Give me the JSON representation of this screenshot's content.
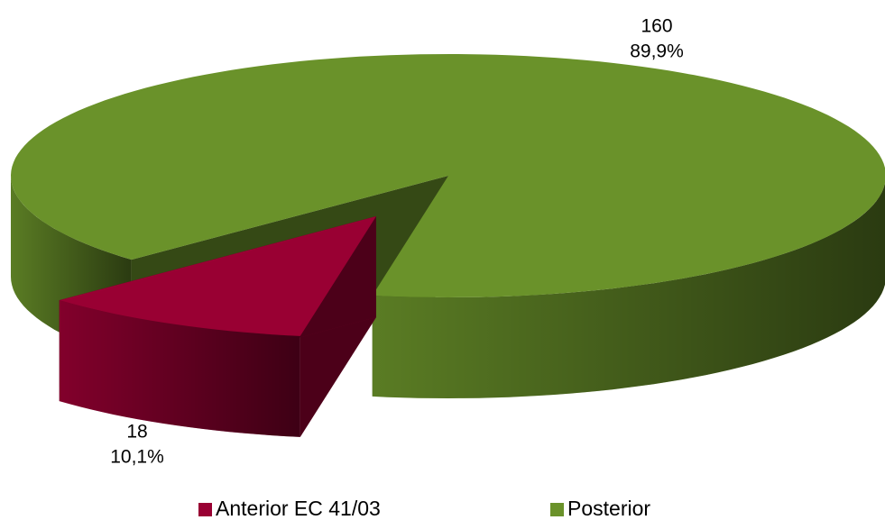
{
  "chart_data": {
    "type": "pie3d",
    "categories": [
      "Anterior EC 41/03",
      "Posterior"
    ],
    "values": [
      18,
      160
    ],
    "percentages": [
      10.1,
      89.9
    ],
    "percentage_labels": [
      "10,1%",
      "89,9%"
    ],
    "colors": [
      "#990033",
      "#6a922a"
    ],
    "legend": "bottom"
  }
}
